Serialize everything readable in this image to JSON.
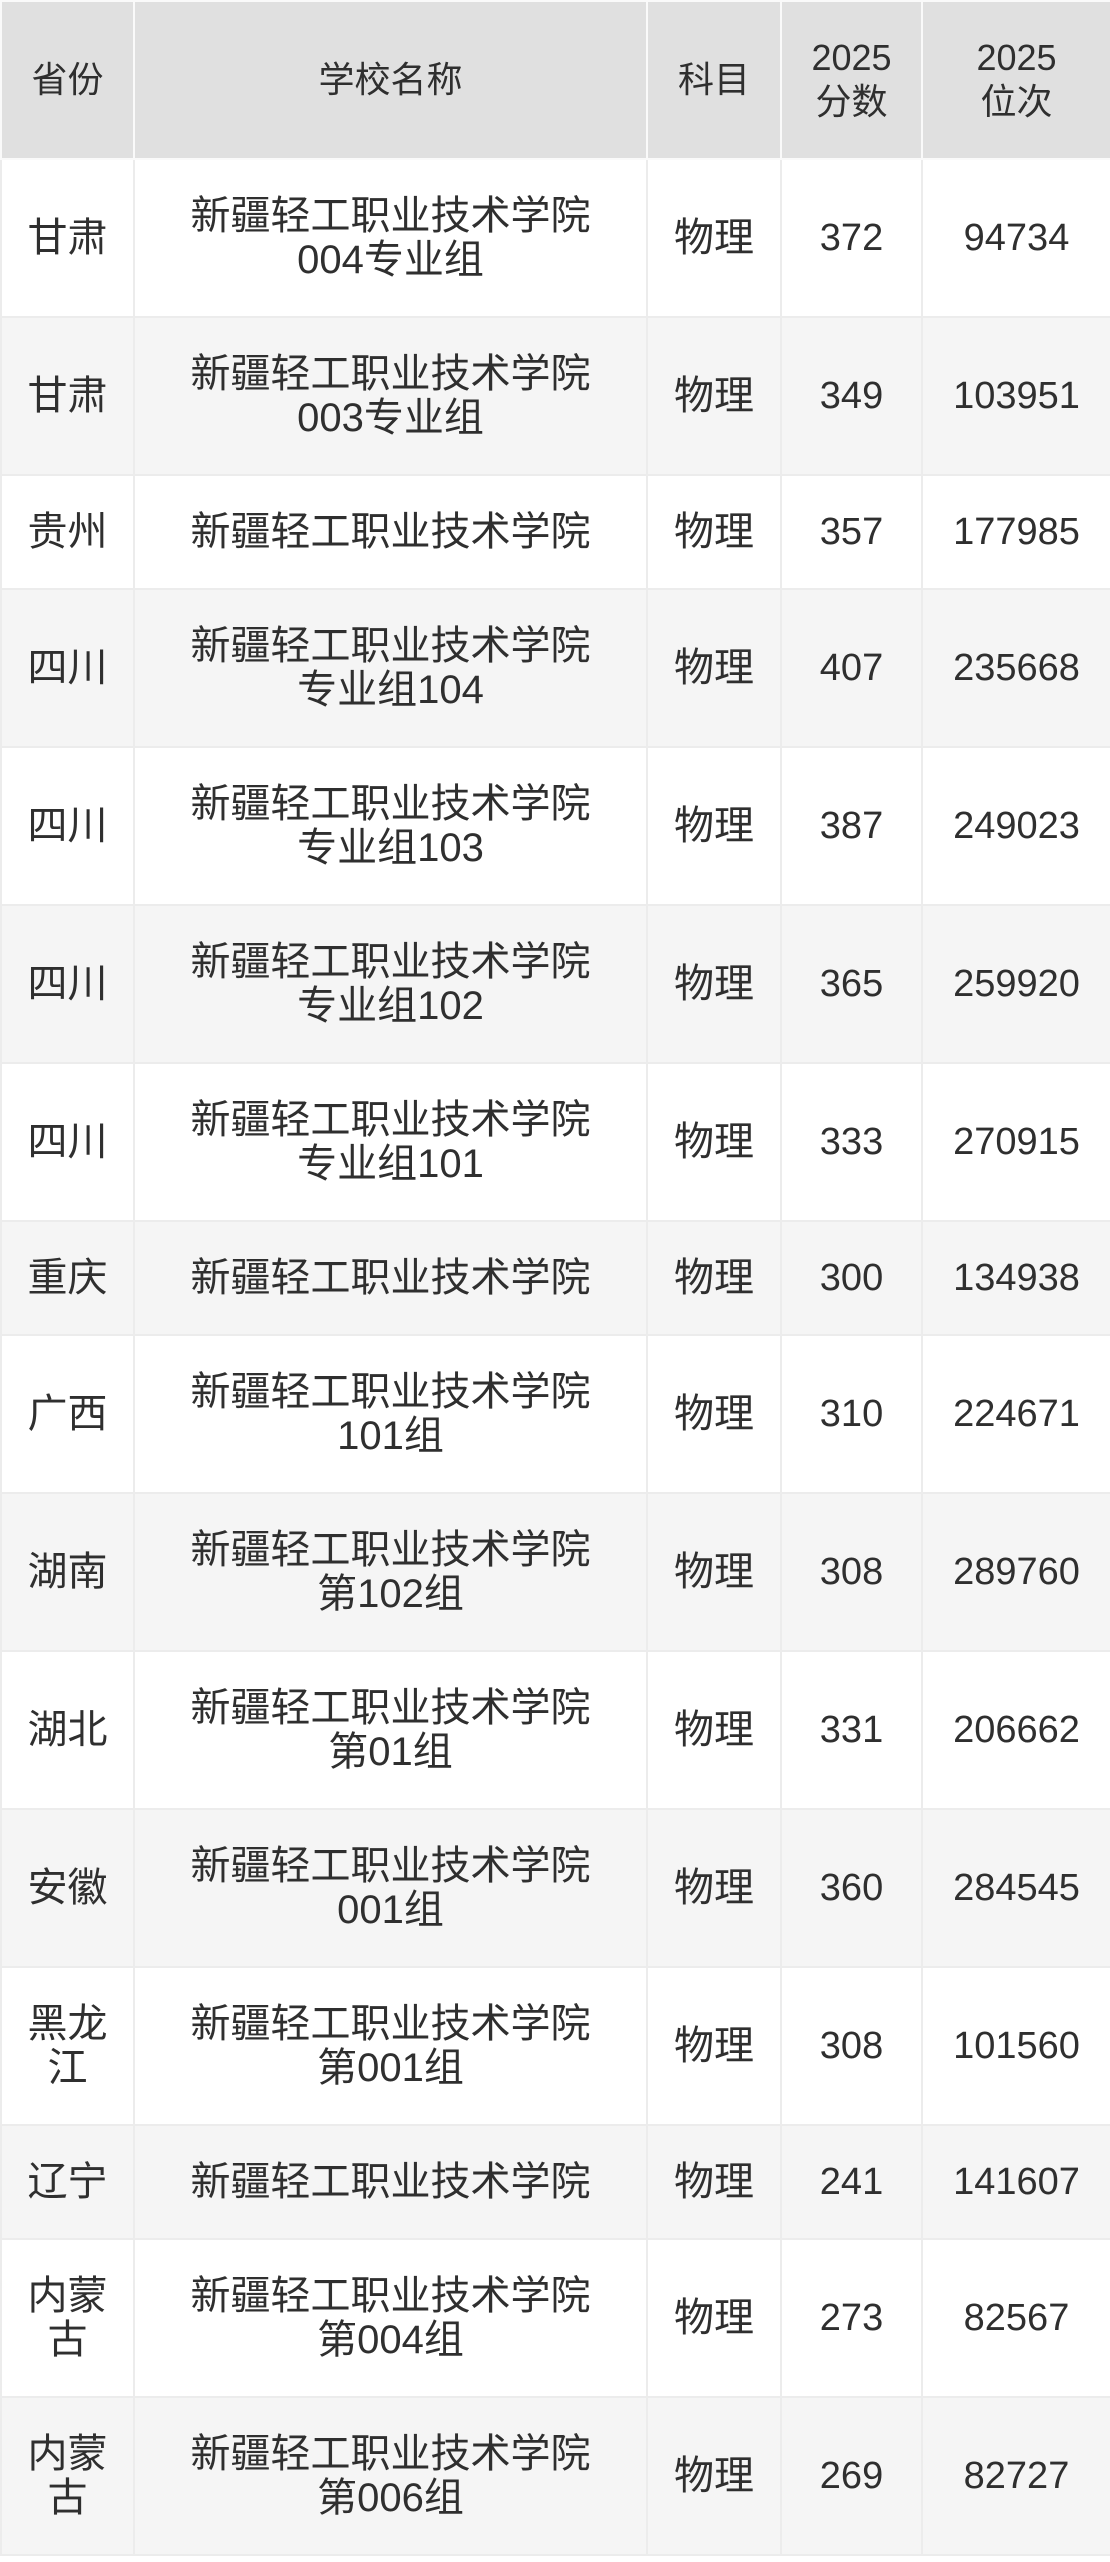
{
  "table": {
    "columns": [
      {
        "key": "province",
        "label": "省份"
      },
      {
        "key": "school",
        "label": "学校名称"
      },
      {
        "key": "subject",
        "label": "科目"
      },
      {
        "key": "score",
        "label": "2025\n分数"
      },
      {
        "key": "rank",
        "label": "2025\n位次"
      }
    ],
    "rows": [
      {
        "province": "甘肃",
        "school": "新疆轻工职业技术学院\n004专业组",
        "subject": "物理",
        "score": "372",
        "rank": "94734"
      },
      {
        "province": "甘肃",
        "school": "新疆轻工职业技术学院\n003专业组",
        "subject": "物理",
        "score": "349",
        "rank": "103951"
      },
      {
        "province": "贵州",
        "school": "新疆轻工职业技术学院",
        "subject": "物理",
        "score": "357",
        "rank": "177985"
      },
      {
        "province": "四川",
        "school": "新疆轻工职业技术学院\n专业组104",
        "subject": "物理",
        "score": "407",
        "rank": "235668"
      },
      {
        "province": "四川",
        "school": "新疆轻工职业技术学院\n专业组103",
        "subject": "物理",
        "score": "387",
        "rank": "249023"
      },
      {
        "province": "四川",
        "school": "新疆轻工职业技术学院\n专业组102",
        "subject": "物理",
        "score": "365",
        "rank": "259920"
      },
      {
        "province": "四川",
        "school": "新疆轻工职业技术学院\n专业组101",
        "subject": "物理",
        "score": "333",
        "rank": "270915"
      },
      {
        "province": "重庆",
        "school": "新疆轻工职业技术学院",
        "subject": "物理",
        "score": "300",
        "rank": "134938"
      },
      {
        "province": "广西",
        "school": "新疆轻工职业技术学院\n101组",
        "subject": "物理",
        "score": "310",
        "rank": "224671"
      },
      {
        "province": "湖南",
        "school": "新疆轻工职业技术学院\n第102组",
        "subject": "物理",
        "score": "308",
        "rank": "289760"
      },
      {
        "province": "湖北",
        "school": "新疆轻工职业技术学院\n第01组",
        "subject": "物理",
        "score": "331",
        "rank": "206662"
      },
      {
        "province": "安徽",
        "school": "新疆轻工职业技术学院\n001组",
        "subject": "物理",
        "score": "360",
        "rank": "284545"
      },
      {
        "province": "黑龙江",
        "school": "新疆轻工职业技术学院\n第001组",
        "subject": "物理",
        "score": "308",
        "rank": "101560"
      },
      {
        "province": "辽宁",
        "school": "新疆轻工职业技术学院",
        "subject": "物理",
        "score": "241",
        "rank": "141607"
      },
      {
        "province": "内蒙古",
        "school": "新疆轻工职业技术学院\n第004组",
        "subject": "物理",
        "score": "273",
        "rank": "82567"
      },
      {
        "province": "内蒙古",
        "school": "新疆轻工职业技术学院\n第006组",
        "subject": "物理",
        "score": "269",
        "rank": "82727"
      }
    ],
    "colors": {
      "header_bg": "#e0e0e0",
      "row_bg": "#ffffff",
      "row_alt_bg": "#f5f5f5",
      "body_border": "#ececec",
      "header_border": "#fafafa",
      "text": "#2f2f2f"
    }
  }
}
